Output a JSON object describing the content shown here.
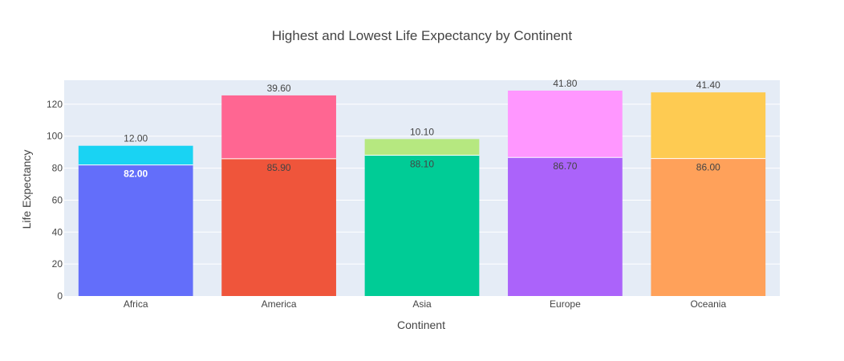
{
  "chart_data": {
    "type": "bar",
    "barmode": "stack",
    "title": "Highest and Lowest Life Expectancy by Continent",
    "xlabel": "Continent",
    "ylabel": "Life Expectancy",
    "ylim": [
      0,
      135
    ],
    "yticks": [
      0,
      20,
      40,
      60,
      80,
      100,
      120
    ],
    "grid": true,
    "legend": false,
    "categories": [
      "Africa",
      "America",
      "Asia",
      "Europe",
      "Oceania"
    ],
    "series": [
      {
        "role": "lower",
        "values": [
          82.0,
          85.9,
          88.1,
          86.7,
          86.0
        ],
        "labels": [
          "82.00",
          "85.90",
          "88.10",
          "86.70",
          "86.00"
        ],
        "colors": [
          "#636efa",
          "#ef553b",
          "#00cc96",
          "#ab63fa",
          "#ffa15a"
        ]
      },
      {
        "role": "upper",
        "values": [
          12.0,
          39.6,
          10.1,
          41.8,
          41.4
        ],
        "labels": [
          "12.00",
          "39.60",
          "10.10",
          "41.80",
          "41.40"
        ],
        "colors": [
          "#19d3f3",
          "#ff6692",
          "#b6e880",
          "#ff97ff",
          "#fecb52"
        ]
      }
    ]
  }
}
